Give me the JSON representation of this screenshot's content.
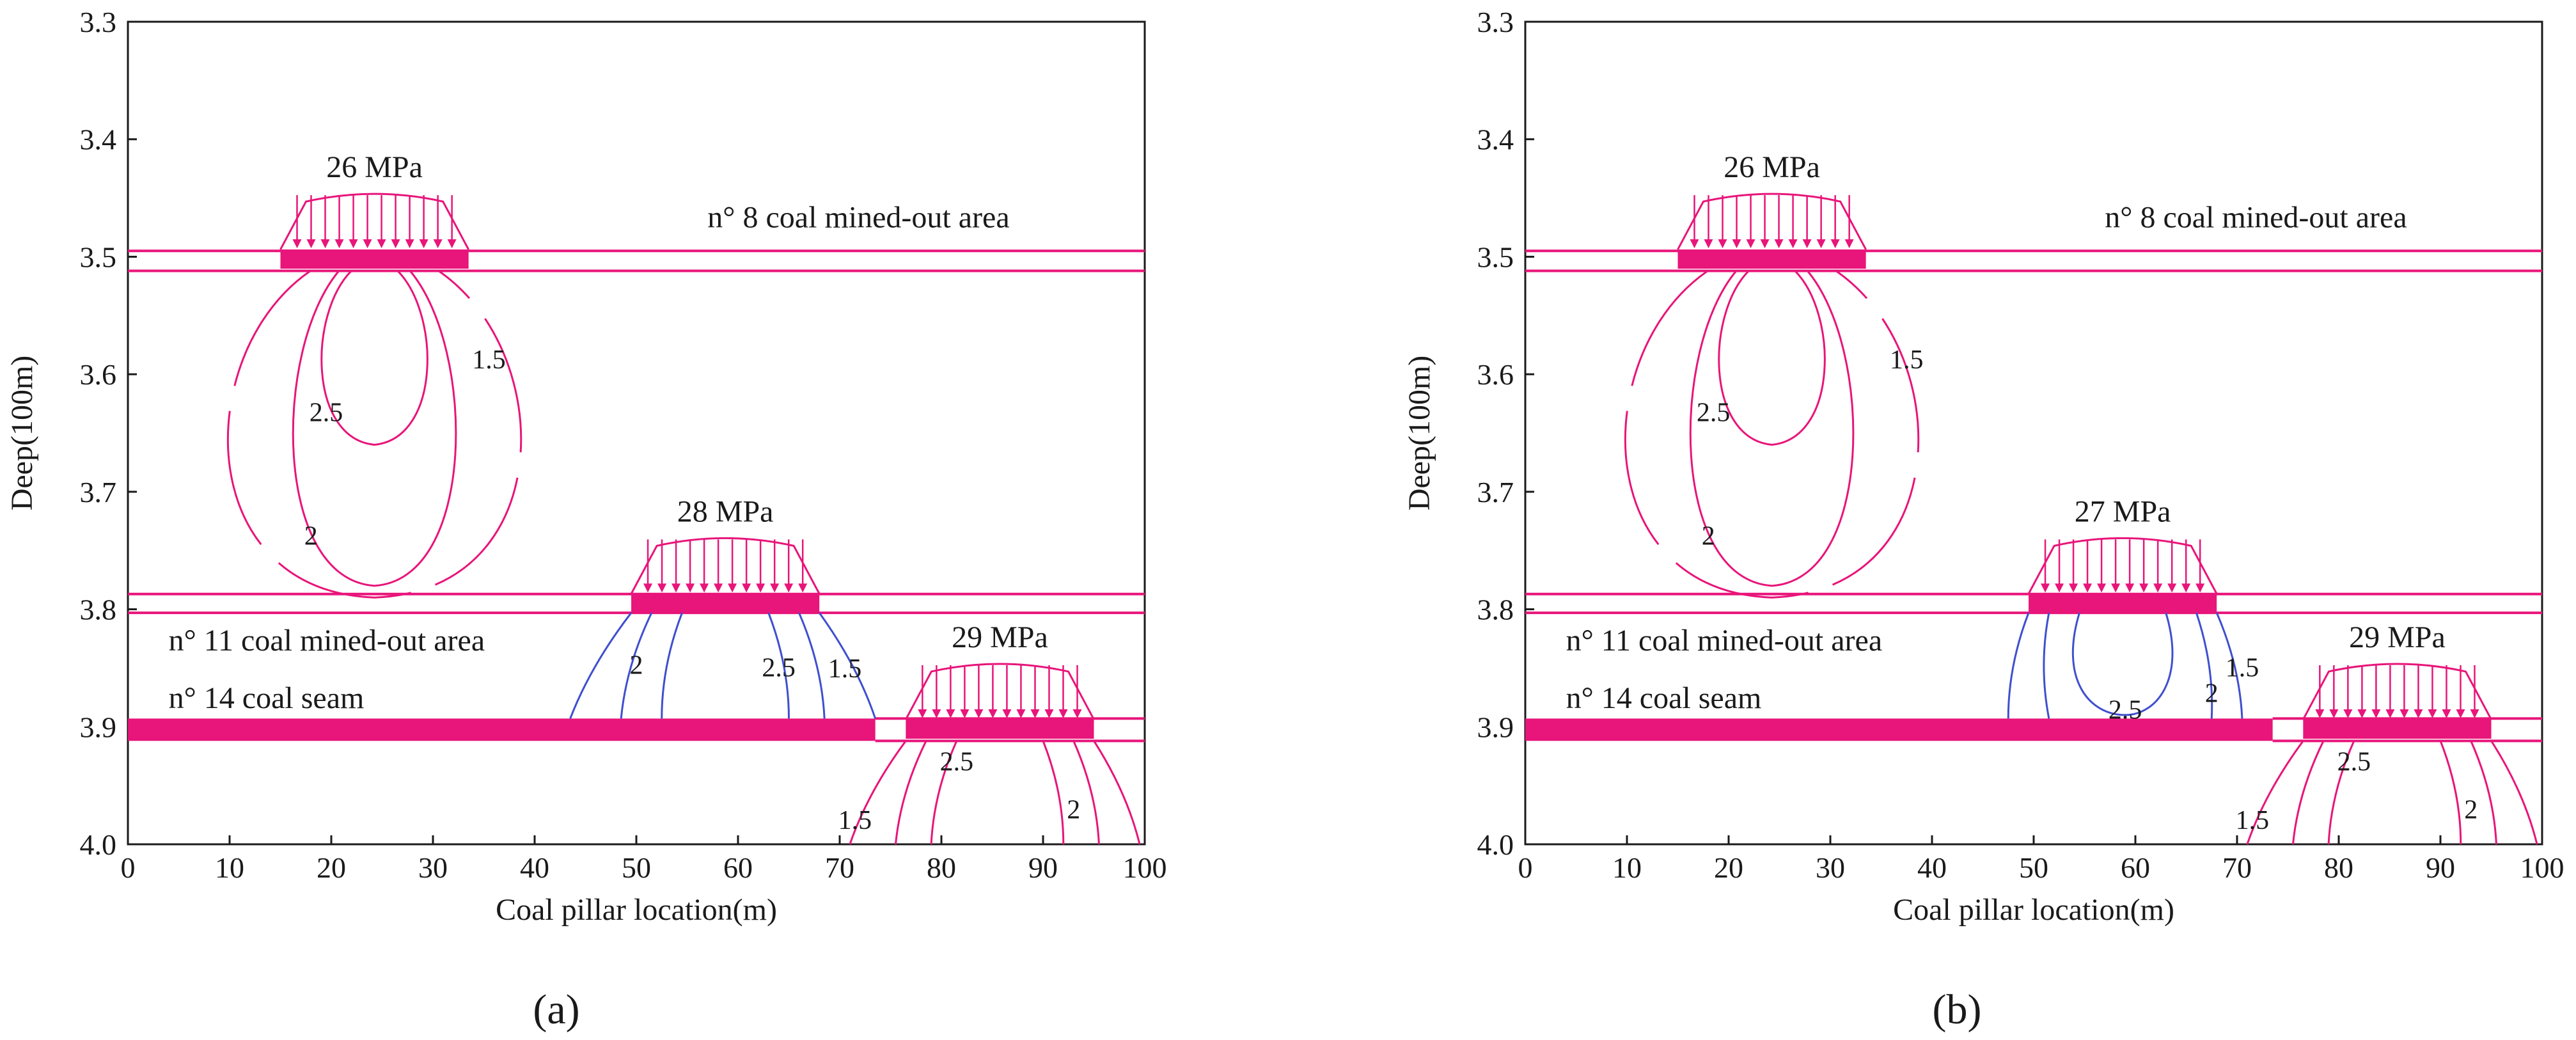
{
  "chart_data": [
    {
      "type": "line",
      "panel": "a",
      "caption": "(a)",
      "xlabel": "Coal pillar location(m)",
      "ylabel": "Deep(100m)",
      "xlim": [
        0,
        100
      ],
      "ylim": [
        3.3,
        4.0
      ],
      "x_ticks": [
        "0",
        "10",
        "20",
        "30",
        "40",
        "50",
        "60",
        "70",
        "80",
        "90",
        "100"
      ],
      "y_ticks": [
        "3.3",
        "3.4",
        "3.5",
        "3.6",
        "3.7",
        "3.8",
        "3.9",
        "4.0"
      ],
      "colors": {
        "stress": "#e8157a",
        "contour_pink": "#e8157a",
        "contour_blue": "#3f4fcf",
        "axis": "#1a1a1a"
      },
      "layers": [
        {
          "label": "n° 8 coal mined-out area",
          "y_top": 3.495,
          "y_bottom": 3.512
        },
        {
          "label": "n° 11 coal mined-out area",
          "y_top": 3.787,
          "y_bottom": 3.803
        },
        {
          "label": "n° 14 coal seam",
          "y_top": 3.893,
          "y_bottom": 3.912
        }
      ],
      "pillars": [
        {
          "label": "26 MPa",
          "x_start": 15,
          "x_end": 33.5,
          "y": 3.502
        },
        {
          "label": "28 MPa",
          "x_start": 49.5,
          "x_end": 68,
          "y": 3.795
        },
        {
          "label": "29 MPa",
          "x_start": 76.5,
          "x_end": 95,
          "y": 3.902
        }
      ],
      "contours": [
        {
          "label": "1.5",
          "pillar": 1
        },
        {
          "label": "2.5",
          "pillar": 1
        },
        {
          "label": "2",
          "pillar": 1
        },
        {
          "label": "2",
          "pillar": 2
        },
        {
          "label": "2.5",
          "pillar": 2
        },
        {
          "label": "1.5",
          "pillar": 2
        },
        {
          "label": "2.5",
          "pillar": 3
        },
        {
          "label": "1.5",
          "pillar": 3
        },
        {
          "label": "2",
          "pillar": 3
        }
      ]
    },
    {
      "type": "line",
      "panel": "b",
      "caption": "(b)",
      "xlabel": "Coal pillar location(m)",
      "ylabel": "Deep(100m)",
      "xlim": [
        0,
        100
      ],
      "ylim": [
        3.3,
        4.0
      ],
      "x_ticks": [
        "0",
        "10",
        "20",
        "30",
        "40",
        "50",
        "60",
        "70",
        "80",
        "90",
        "100"
      ],
      "y_ticks": [
        "3.3",
        "3.4",
        "3.5",
        "3.6",
        "3.7",
        "3.8",
        "3.9",
        "4.0"
      ],
      "colors": {
        "stress": "#e8157a",
        "contour_pink": "#e8157a",
        "contour_blue": "#3f4fcf",
        "axis": "#1a1a1a"
      },
      "layers": [
        {
          "label": "n° 8 coal mined-out area",
          "y_top": 3.495,
          "y_bottom": 3.512
        },
        {
          "label": "n° 11 coal mined-out area",
          "y_top": 3.787,
          "y_bottom": 3.803
        },
        {
          "label": "n° 14 coal seam",
          "y_top": 3.893,
          "y_bottom": 3.912
        }
      ],
      "pillars": [
        {
          "label": "26 MPa",
          "x_start": 15,
          "x_end": 33.5,
          "y": 3.502
        },
        {
          "label": "27 MPa",
          "x_start": 49.5,
          "x_end": 68,
          "y": 3.795
        },
        {
          "label": "29 MPa",
          "x_start": 76.5,
          "x_end": 95,
          "y": 3.902
        }
      ],
      "contours": [
        {
          "label": "1.5",
          "pillar": 1
        },
        {
          "label": "2.5",
          "pillar": 1
        },
        {
          "label": "2",
          "pillar": 1
        },
        {
          "label": "2.5",
          "pillar": 2
        },
        {
          "label": "1.5",
          "pillar": 2
        },
        {
          "label": "2",
          "pillar": 2
        },
        {
          "label": "2.5",
          "pillar": 3
        },
        {
          "label": "1.5",
          "pillar": 3
        },
        {
          "label": "2",
          "pillar": 3
        }
      ]
    }
  ]
}
